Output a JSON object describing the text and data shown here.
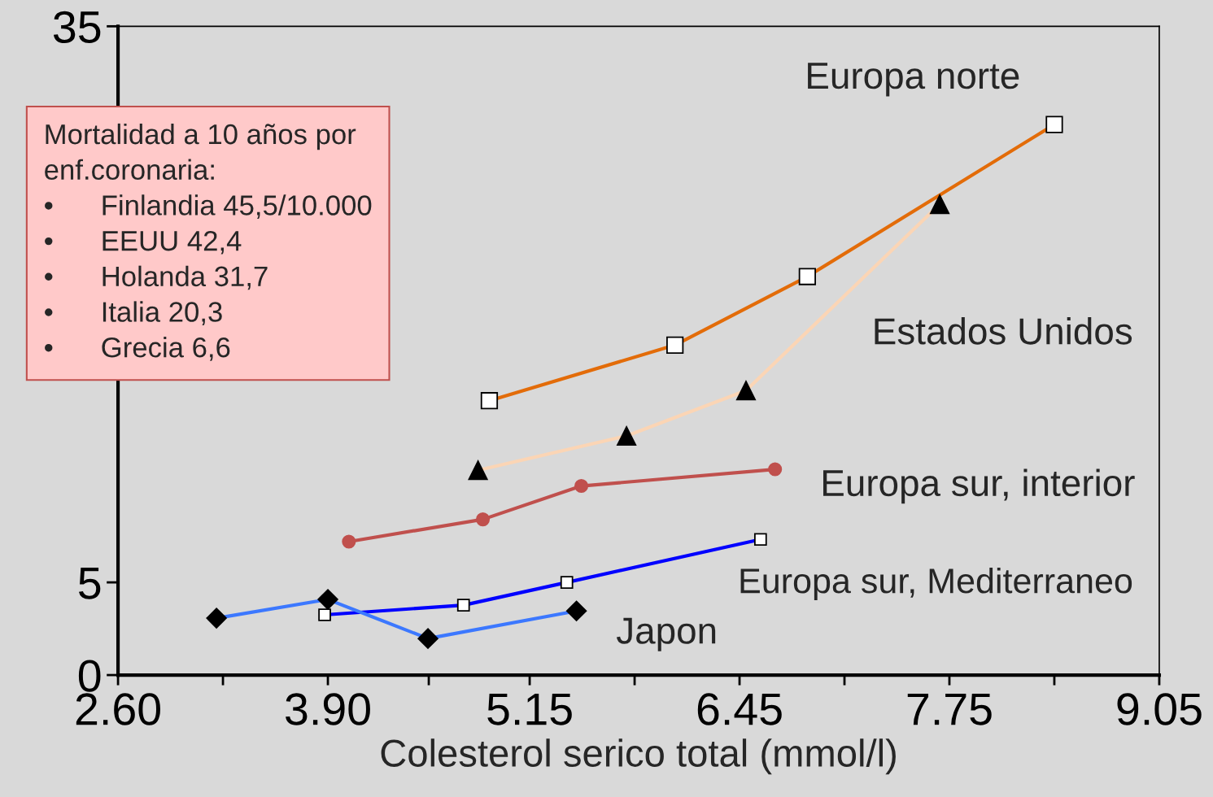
{
  "chart_data": {
    "type": "line",
    "xlabel": "Colesterol serico total (mmol/l)",
    "xlim": [
      2.6,
      9.05
    ],
    "xticks": [
      {
        "value": 2.6,
        "label": "2.60"
      },
      {
        "value": 3.25,
        "label": null
      },
      {
        "value": 3.9,
        "label": "3.90"
      },
      {
        "value": 4.525,
        "label": null
      },
      {
        "value": 5.15,
        "label": "5.15"
      },
      {
        "value": 5.8,
        "label": null
      },
      {
        "value": 6.45,
        "label": "6.45"
      },
      {
        "value": 7.1,
        "label": null
      },
      {
        "value": 7.75,
        "label": "7.75"
      },
      {
        "value": 8.4,
        "label": null
      },
      {
        "value": 9.05,
        "label": "9.05"
      }
    ],
    "ylim": [
      0,
      35
    ],
    "yticks": [
      0,
      5,
      35
    ],
    "grid": false,
    "legend": false,
    "series": [
      {
        "name": "Europa norte",
        "color": "#e36c09",
        "marker": "square",
        "x": [
          4.9,
          6.05,
          6.87,
          8.4
        ],
        "values": [
          14.8,
          17.8,
          21.5,
          29.7
        ]
      },
      {
        "name": "Estados Unidos",
        "color": "#fbd5b5",
        "marker": "triangle",
        "x": [
          4.83,
          5.75,
          6.49,
          7.69
        ],
        "values": [
          11.05,
          12.9,
          15.35,
          25.4
        ]
      },
      {
        "name": "Europa sur, interior",
        "color": "#c0504d",
        "marker": "circle",
        "x": [
          4.03,
          4.86,
          5.47,
          6.67
        ],
        "values": [
          7.2,
          8.4,
          10.2,
          11.1
        ]
      },
      {
        "name": "Europa sur, Mediterraneo",
        "color": "#0000ff",
        "marker": "square",
        "x": [
          3.88,
          4.74,
          5.38,
          6.58
        ],
        "values": [
          3.25,
          3.77,
          5.0,
          7.32
        ]
      },
      {
        "name": "Japon",
        "color": "#3c78ff",
        "marker": "diamond",
        "x": [
          3.21,
          3.9,
          4.52,
          5.44
        ],
        "values": [
          3.07,
          4.08,
          1.97,
          3.46
        ]
      }
    ],
    "annotations": [
      "Mortalidad a 10 años por\nenf.coronaria:\n•      Finlandia 45,5/10.000\n•      EEUU 42,4\n•      Holanda 31,7\n•      Italia 20,3\n•      Grecia 6,6"
    ]
  }
}
